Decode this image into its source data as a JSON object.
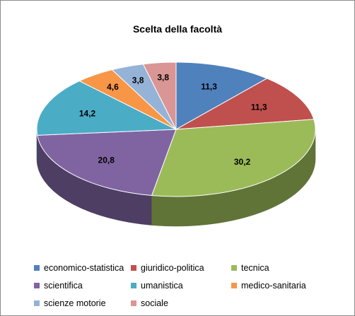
{
  "chart_data": {
    "type": "pie",
    "title": "Scelta della facoltà",
    "categories": [
      "economico-statistica",
      "giuridico-politica",
      "tecnica",
      "scientifica",
      "umanistica",
      "medico-sanitaria",
      "scienze motorie",
      "sociale"
    ],
    "values": [
      11.3,
      11.3,
      30.2,
      20.8,
      14.2,
      4.6,
      3.8,
      3.8
    ],
    "data_labels": [
      "11,3",
      "11,3",
      "30,2",
      "20,8",
      "14,2",
      "4,6",
      "3,8",
      "3,8"
    ],
    "colors": [
      "#4f81bd",
      "#c0504d",
      "#9bbb59",
      "#8064a2",
      "#4bacc6",
      "#f79646",
      "#95b3d7",
      "#d99694"
    ],
    "legend_position": "bottom",
    "style": "3d"
  }
}
